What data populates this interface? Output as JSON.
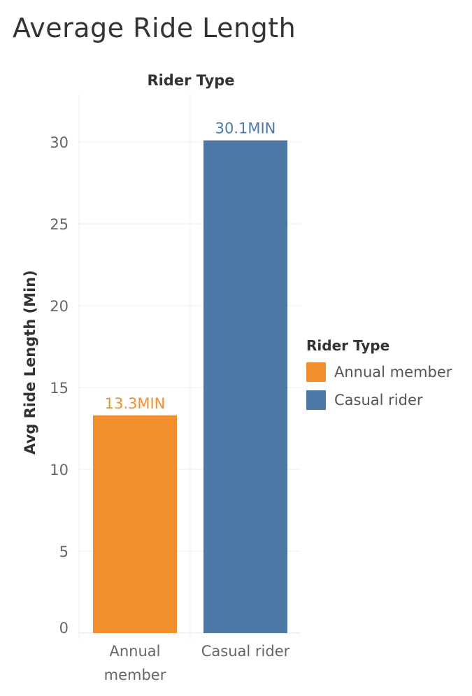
{
  "chart_data": {
    "type": "bar",
    "title": "Average Ride Length",
    "column_header": "Rider Type",
    "ylabel": "Avg Ride Length (Min)",
    "categories": [
      {
        "lines": [
          "Annual",
          "member"
        ]
      },
      {
        "lines": [
          "Casual rider"
        ]
      }
    ],
    "values": [
      13.3,
      30.1
    ],
    "data_labels": [
      "13.3MIN",
      "30.1MIN"
    ],
    "colors": [
      "#f28e2b",
      "#4e79a7"
    ],
    "ylim": [
      0,
      32
    ],
    "yticks": [
      0,
      5,
      10,
      15,
      20,
      25,
      30
    ],
    "grid": true,
    "legend": {
      "title": "Rider Type",
      "placement": "right",
      "items": [
        {
          "label": "Annual member",
          "color": "#f28e2b"
        },
        {
          "label": "Casual rider",
          "color": "#4e79a7"
        }
      ]
    }
  }
}
